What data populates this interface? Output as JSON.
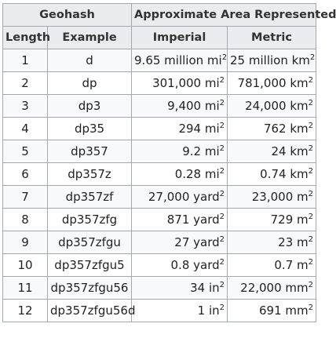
{
  "header": {
    "geohash": "Geohash",
    "area": "Approximate Area Represented",
    "length": "Length",
    "example": "Example",
    "imperial": "Imperial",
    "metric": "Metric"
  },
  "rows": [
    {
      "length": "1",
      "example": "d",
      "imperial": "9.65 million mi",
      "imperial_exp": "2",
      "metric": "25 million km",
      "metric_exp": "2"
    },
    {
      "length": "2",
      "example": "dp",
      "imperial": "301,000 mi",
      "imperial_exp": "2",
      "metric": "781,000 km",
      "metric_exp": "2"
    },
    {
      "length": "3",
      "example": "dp3",
      "imperial": "9,400 mi",
      "imperial_exp": "2",
      "metric": "24,000 km",
      "metric_exp": "2"
    },
    {
      "length": "4",
      "example": "dp35",
      "imperial": "294 mi",
      "imperial_exp": "2",
      "metric": "762 km",
      "metric_exp": "2"
    },
    {
      "length": "5",
      "example": "dp357",
      "imperial": "9.2 mi",
      "imperial_exp": "2",
      "metric": "24 km",
      "metric_exp": "2"
    },
    {
      "length": "6",
      "example": "dp357z",
      "imperial": "0.28 mi",
      "imperial_exp": "2",
      "metric": "0.74 km",
      "metric_exp": "2"
    },
    {
      "length": "7",
      "example": "dp357zf",
      "imperial": "27,000 yard",
      "imperial_exp": "2",
      "metric": "23,000 m",
      "metric_exp": "2"
    },
    {
      "length": "8",
      "example": "dp357zfg",
      "imperial": "871 yard",
      "imperial_exp": "2",
      "metric": "729 m",
      "metric_exp": "2"
    },
    {
      "length": "9",
      "example": "dp357zfgu",
      "imperial": "27 yard",
      "imperial_exp": "2",
      "metric": "23 m",
      "metric_exp": "2"
    },
    {
      "length": "10",
      "example": "dp357zfgu5",
      "imperial": "0.8 yard",
      "imperial_exp": "2",
      "metric": "0.7 m",
      "metric_exp": "2"
    },
    {
      "length": "11",
      "example": "dp357zfgu56",
      "imperial": "34 in",
      "imperial_exp": "2",
      "metric": "22,000 mm",
      "metric_exp": "2"
    },
    {
      "length": "12",
      "example": "dp357zfgu56d",
      "imperial": "1 in",
      "imperial_exp": "2",
      "metric": "691 mm",
      "metric_exp": "2"
    }
  ]
}
